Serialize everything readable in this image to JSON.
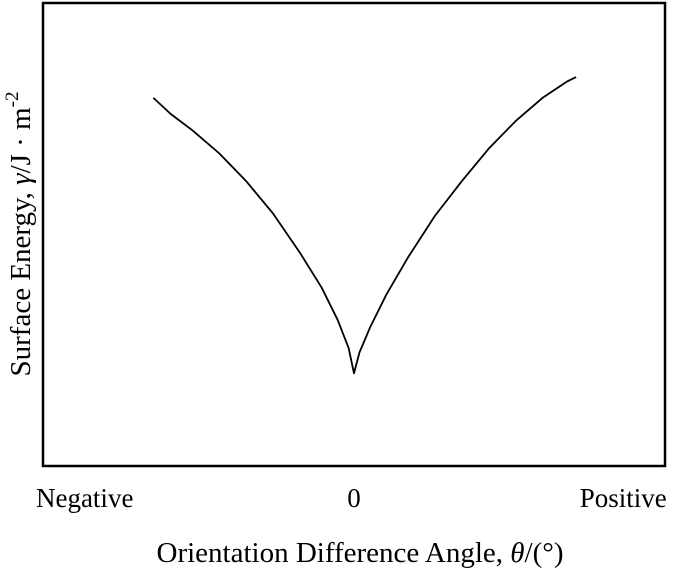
{
  "chart_data": {
    "type": "line",
    "title": "",
    "xlabel_text": "Orientation Difference Angle, ",
    "xlabel_symbol": "θ",
    "xlabel_unit": "/(°)",
    "ylabel_text": "Surface Energy, ",
    "ylabel_symbol": "γ",
    "ylabel_unit": "/J · m",
    "ylabel_exponent": "-2",
    "x_ticks": [
      {
        "value": -1,
        "label": "Negative"
      },
      {
        "value": 0,
        "label": "0"
      },
      {
        "value": 1,
        "label": "Positive"
      }
    ],
    "xlim": [
      -1.155,
      1.155
    ],
    "ylim": [
      0,
      1
    ],
    "grid": false,
    "legend": "none",
    "series": [
      {
        "color": "#000000",
        "x": [
          -0.745,
          -0.68,
          -0.6,
          -0.5,
          -0.4,
          -0.3,
          -0.2,
          -0.12,
          -0.06,
          -0.02,
          0,
          0.02,
          0.06,
          0.12,
          0.2,
          0.3,
          0.4,
          0.5,
          0.6,
          0.7,
          0.79,
          0.825
        ],
        "y": [
          0.795,
          0.76,
          0.725,
          0.675,
          0.615,
          0.545,
          0.46,
          0.385,
          0.315,
          0.255,
          0.2,
          0.245,
          0.3,
          0.37,
          0.45,
          0.54,
          0.615,
          0.685,
          0.745,
          0.795,
          0.83,
          0.84
        ]
      }
    ]
  }
}
